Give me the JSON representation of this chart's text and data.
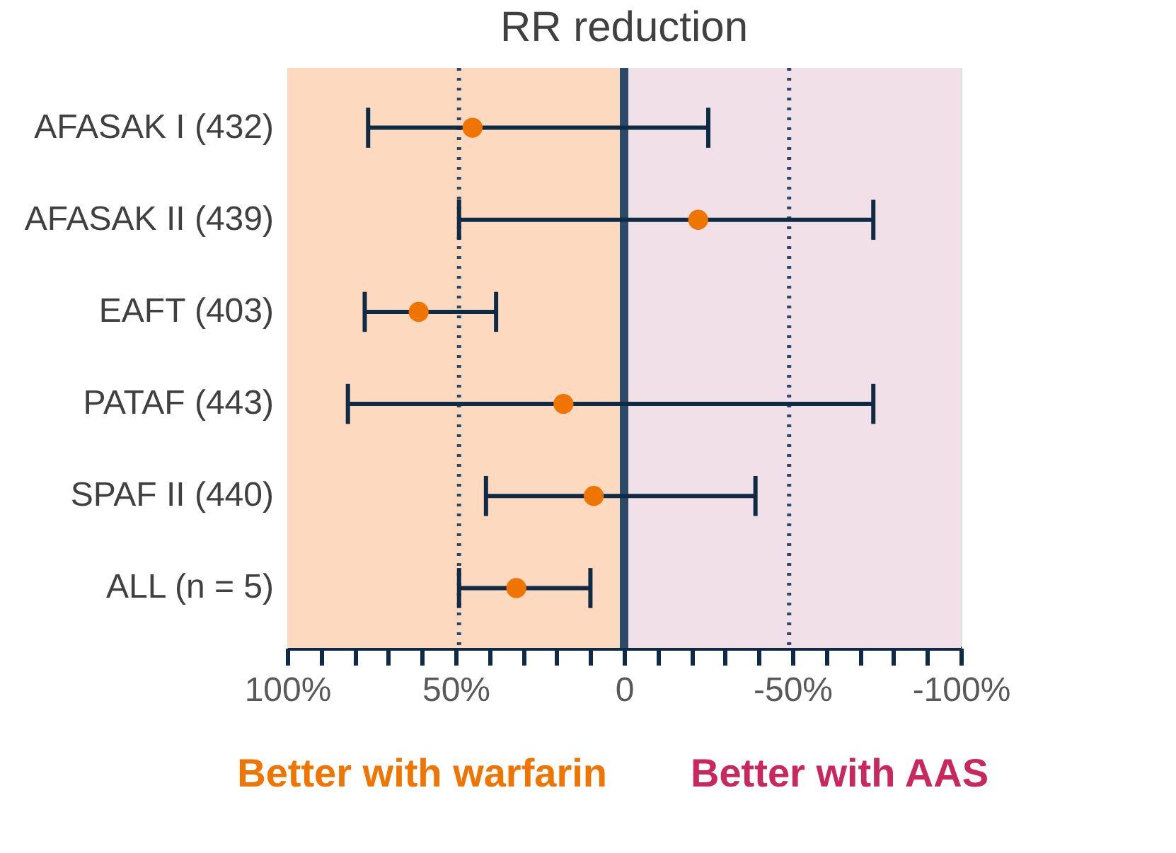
{
  "chart_data": {
    "type": "scatter",
    "title": "RR reduction",
    "categories": [
      "AFASAK I  (432)",
      "AFASAK II  (439)",
      "EAFT  (403)",
      "PATAF  (443)",
      "SPAF II  (440)",
      "ALL  (n = 5)"
    ],
    "orientation": "horizontal",
    "series": [
      {
        "color": "#f07400",
        "values": [
          45,
          -22,
          61,
          18,
          9,
          32
        ],
        "errors": [
          [
            -25,
            76
          ],
          [
            -74,
            49
          ],
          [
            38,
            77
          ],
          [
            -74,
            82
          ],
          [
            -39,
            41
          ],
          [
            10,
            49
          ]
        ]
      }
    ],
    "xlim": [
      100,
      -100
    ],
    "xticks": [
      {
        "value": 100,
        "label": "100%"
      },
      {
        "value": 90,
        "label": null
      },
      {
        "value": 80,
        "label": null
      },
      {
        "value": 70,
        "label": null
      },
      {
        "value": 60,
        "label": null
      },
      {
        "value": 50,
        "label": "50%"
      },
      {
        "value": 40,
        "label": null
      },
      {
        "value": 30,
        "label": null
      },
      {
        "value": 20,
        "label": null
      },
      {
        "value": 10,
        "label": null
      },
      0,
      {
        "value": -10,
        "label": null
      },
      {
        "value": -20,
        "label": null
      },
      {
        "value": -30,
        "label": null
      },
      {
        "value": -40,
        "label": null
      },
      {
        "value": -50,
        "label": "-50%"
      },
      {
        "value": -60,
        "label": null
      },
      {
        "value": -70,
        "label": null
      },
      {
        "value": -80,
        "label": null
      },
      {
        "value": -90,
        "label": null
      },
      {
        "value": -100,
        "label": "-100%"
      }
    ],
    "ref_lines": [
      {
        "axis": "x",
        "value": 0,
        "color": "#2a4a68",
        "line_style": "solid"
      },
      {
        "axis": "x",
        "value": 49,
        "color": "#2a4a68",
        "line_style": "dotted"
      },
      {
        "axis": "x",
        "value": -49,
        "color": "#2a4a68",
        "line_style": "dotted"
      }
    ],
    "bands": [
      {
        "axis": "x",
        "from": 100,
        "to": 0,
        "label": "Better with warfarin",
        "color": "#fdd9c0"
      },
      {
        "axis": "x",
        "from": 0,
        "to": -100,
        "label": "Better with AAS",
        "color": "#f2e0e8"
      }
    ],
    "marker": "circle"
  }
}
